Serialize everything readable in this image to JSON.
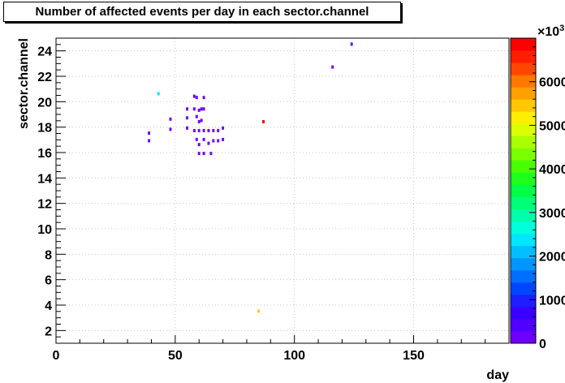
{
  "chart_data": {
    "type": "heatmap",
    "title": "Number of affected events per day in each sector.channel",
    "xlabel": "day",
    "ylabel": "sector.channel",
    "xlim": [
      0,
      190
    ],
    "ylim": [
      1,
      25
    ],
    "x_ticks": [
      "0",
      "50",
      "100",
      "150"
    ],
    "y_ticks": [
      "2",
      "4",
      "6",
      "8",
      "10",
      "12",
      "14",
      "16",
      "18",
      "20",
      "22",
      "24"
    ],
    "grid": true,
    "colorbar": {
      "range": [
        0,
        7000
      ],
      "exponent_label": "×10",
      "exponent_power": "3",
      "ticks": [
        "0",
        "1000",
        "2000",
        "3000",
        "4000",
        "5000",
        "6000"
      ],
      "colors": [
        "#6e00ff",
        "#5000ff",
        "#3a00ff",
        "#1e1eff",
        "#0046ff",
        "#006eff",
        "#0096ff",
        "#00beff",
        "#00e6ff",
        "#00ffdc",
        "#00ffaa",
        "#00ff78",
        "#00ff46",
        "#1eff1e",
        "#46ff00",
        "#78ff00",
        "#aaff00",
        "#dcff00",
        "#ffee00",
        "#ffc800",
        "#ffa000",
        "#ff7800",
        "#ff4600",
        "#ff1e00",
        "#ff0000"
      ]
    },
    "cells": [
      {
        "day": 39,
        "ch": 17.4,
        "value": 100
      },
      {
        "day": 39,
        "ch": 16.8,
        "value": 100
      },
      {
        "day": 43,
        "ch": 20.5,
        "value": 2300
      },
      {
        "day": 48,
        "ch": 18.5,
        "value": 100
      },
      {
        "day": 48,
        "ch": 17.7,
        "value": 100
      },
      {
        "day": 55,
        "ch": 19.3,
        "value": 100
      },
      {
        "day": 55,
        "ch": 18.6,
        "value": 100
      },
      {
        "day": 55,
        "ch": 17.8,
        "value": 100
      },
      {
        "day": 58,
        "ch": 20.3,
        "value": 100
      },
      {
        "day": 58,
        "ch": 19.3,
        "value": 100
      },
      {
        "day": 58,
        "ch": 17.6,
        "value": 100
      },
      {
        "day": 59,
        "ch": 20.2,
        "value": 100
      },
      {
        "day": 59,
        "ch": 18.7,
        "value": 100
      },
      {
        "day": 59,
        "ch": 16.9,
        "value": 100
      },
      {
        "day": 60,
        "ch": 19.2,
        "value": 100
      },
      {
        "day": 60,
        "ch": 18.3,
        "value": 100
      },
      {
        "day": 60,
        "ch": 17.6,
        "value": 100
      },
      {
        "day": 60,
        "ch": 16.5,
        "value": 100
      },
      {
        "day": 60,
        "ch": 15.8,
        "value": 100
      },
      {
        "day": 61,
        "ch": 19.3,
        "value": 100
      },
      {
        "day": 61,
        "ch": 18.4,
        "value": 100
      },
      {
        "day": 62,
        "ch": 20.2,
        "value": 100
      },
      {
        "day": 62,
        "ch": 19.3,
        "value": 100
      },
      {
        "day": 62,
        "ch": 17.6,
        "value": 100
      },
      {
        "day": 62,
        "ch": 16.9,
        "value": 100
      },
      {
        "day": 62,
        "ch": 15.8,
        "value": 100
      },
      {
        "day": 64,
        "ch": 17.6,
        "value": 100
      },
      {
        "day": 64,
        "ch": 16.6,
        "value": 100
      },
      {
        "day": 65,
        "ch": 15.8,
        "value": 100
      },
      {
        "day": 66,
        "ch": 17.6,
        "value": 100
      },
      {
        "day": 66,
        "ch": 16.8,
        "value": 100
      },
      {
        "day": 68,
        "ch": 17.6,
        "value": 100
      },
      {
        "day": 68,
        "ch": 16.8,
        "value": 100
      },
      {
        "day": 70,
        "ch": 17.8,
        "value": 100
      },
      {
        "day": 70,
        "ch": 16.9,
        "value": 100
      },
      {
        "day": 85,
        "ch": 3.4,
        "value": 5400
      },
      {
        "day": 87,
        "ch": 18.3,
        "value": 6800
      },
      {
        "day": 116,
        "ch": 22.6,
        "value": 100
      },
      {
        "day": 124,
        "ch": 24.4,
        "value": 100
      }
    ]
  }
}
